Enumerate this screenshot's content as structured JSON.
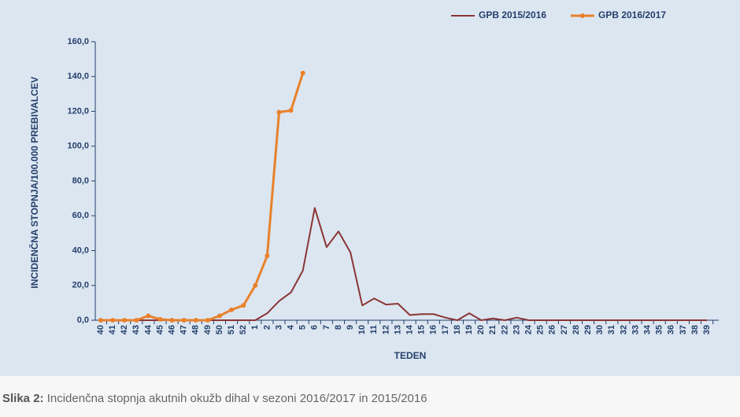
{
  "chart_data": {
    "type": "line",
    "ylabel": "INCIDENČNA STOPNJA/100.000 PREBIVALCEV",
    "xlabel": "TEDEN",
    "categories": [
      "40",
      "41",
      "42",
      "43",
      "44",
      "45",
      "46",
      "47",
      "48",
      "49",
      "50",
      "51",
      "52",
      "1",
      "2",
      "3",
      "4",
      "5",
      "6",
      "7",
      "8",
      "9",
      "10",
      "11",
      "12",
      "13",
      "14",
      "15",
      "16",
      "17",
      "18",
      "19",
      "20",
      "21",
      "22",
      "23",
      "24",
      "25",
      "26",
      "27",
      "28",
      "29",
      "30",
      "31",
      "32",
      "33",
      "34",
      "35",
      "36",
      "37",
      "38",
      "39"
    ],
    "series": [
      {
        "name": "GPB 2015/2016",
        "color": "#8b3535",
        "markers": false,
        "values": [
          0,
          0,
          0,
          0,
          0,
          0,
          0,
          0,
          0,
          0,
          0,
          0,
          0,
          0,
          4,
          11,
          16,
          28.5,
          64.5,
          42,
          51,
          39,
          8.5,
          12.5,
          9,
          9.5,
          3,
          3.5,
          3.5,
          1.5,
          0,
          4,
          0,
          1,
          0,
          1.5,
          0,
          0,
          0,
          0,
          0,
          0,
          0,
          0,
          0,
          0,
          0,
          0,
          0,
          0,
          0,
          0
        ]
      },
      {
        "name": "GPB 2016/2017",
        "color": "#e8812b",
        "markers": true,
        "values": [
          0,
          0,
          0,
          0,
          2.5,
          0.5,
          0,
          0,
          0,
          0,
          2.5,
          6,
          8.5,
          20,
          37,
          119.5,
          120.5,
          142,
          null,
          null,
          null,
          null,
          null,
          null,
          null,
          null,
          null,
          null,
          null,
          null,
          null,
          null,
          null,
          null,
          null,
          null,
          null,
          null,
          null,
          null,
          null,
          null,
          null,
          null,
          null,
          null,
          null,
          null,
          null,
          null,
          null,
          null
        ]
      }
    ],
    "ylim": [
      0,
      160
    ],
    "yticks": [
      {
        "value": 0,
        "label": "0,0"
      },
      {
        "value": 20,
        "label": "20,0"
      },
      {
        "value": 40,
        "label": "40,0"
      },
      {
        "value": 60,
        "label": "60,0"
      },
      {
        "value": 80,
        "label": "80,0"
      },
      {
        "value": 100,
        "label": "100,0"
      },
      {
        "value": 120,
        "label": "120,0"
      },
      {
        "value": 140,
        "label": "140,0"
      },
      {
        "value": 160,
        "label": "160,0"
      }
    ],
    "legend": "top-right"
  },
  "caption": {
    "label": "Slika 2:",
    "text": "Incidenčna stopnja akutnih okužb dihal v sezoni 2016/2017 in 2015/2016"
  }
}
